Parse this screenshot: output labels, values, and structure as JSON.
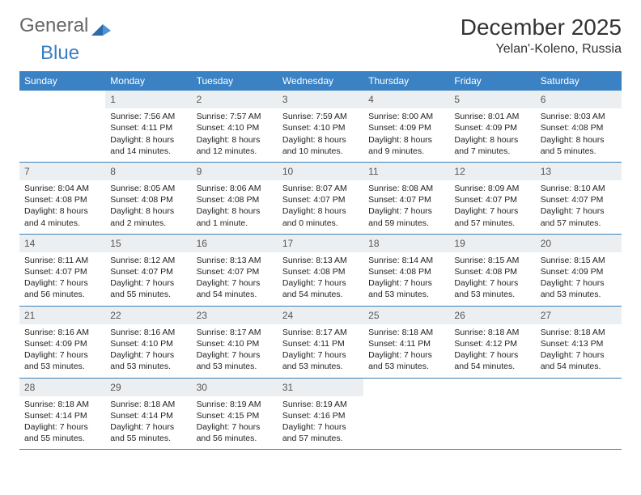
{
  "brand": {
    "part1": "General",
    "part2": "Blue"
  },
  "title": "December 2025",
  "location": "Yelan'-Koleno, Russia",
  "colors": {
    "header_bg": "#3a82c4",
    "header_text": "#ffffff",
    "daynum_bg": "#eceff1",
    "rule": "#3a7fb8",
    "text": "#333333",
    "logo_blue": "#3a7fc4"
  },
  "dow": [
    "Sunday",
    "Monday",
    "Tuesday",
    "Wednesday",
    "Thursday",
    "Friday",
    "Saturday"
  ],
  "weeks": [
    [
      {
        "n": "",
        "lines": []
      },
      {
        "n": "1",
        "lines": [
          "Sunrise: 7:56 AM",
          "Sunset: 4:11 PM",
          "Daylight: 8 hours",
          "and 14 minutes."
        ]
      },
      {
        "n": "2",
        "lines": [
          "Sunrise: 7:57 AM",
          "Sunset: 4:10 PM",
          "Daylight: 8 hours",
          "and 12 minutes."
        ]
      },
      {
        "n": "3",
        "lines": [
          "Sunrise: 7:59 AM",
          "Sunset: 4:10 PM",
          "Daylight: 8 hours",
          "and 10 minutes."
        ]
      },
      {
        "n": "4",
        "lines": [
          "Sunrise: 8:00 AM",
          "Sunset: 4:09 PM",
          "Daylight: 8 hours",
          "and 9 minutes."
        ]
      },
      {
        "n": "5",
        "lines": [
          "Sunrise: 8:01 AM",
          "Sunset: 4:09 PM",
          "Daylight: 8 hours",
          "and 7 minutes."
        ]
      },
      {
        "n": "6",
        "lines": [
          "Sunrise: 8:03 AM",
          "Sunset: 4:08 PM",
          "Daylight: 8 hours",
          "and 5 minutes."
        ]
      }
    ],
    [
      {
        "n": "7",
        "lines": [
          "Sunrise: 8:04 AM",
          "Sunset: 4:08 PM",
          "Daylight: 8 hours",
          "and 4 minutes."
        ]
      },
      {
        "n": "8",
        "lines": [
          "Sunrise: 8:05 AM",
          "Sunset: 4:08 PM",
          "Daylight: 8 hours",
          "and 2 minutes."
        ]
      },
      {
        "n": "9",
        "lines": [
          "Sunrise: 8:06 AM",
          "Sunset: 4:08 PM",
          "Daylight: 8 hours",
          "and 1 minute."
        ]
      },
      {
        "n": "10",
        "lines": [
          "Sunrise: 8:07 AM",
          "Sunset: 4:07 PM",
          "Daylight: 8 hours",
          "and 0 minutes."
        ]
      },
      {
        "n": "11",
        "lines": [
          "Sunrise: 8:08 AM",
          "Sunset: 4:07 PM",
          "Daylight: 7 hours",
          "and 59 minutes."
        ]
      },
      {
        "n": "12",
        "lines": [
          "Sunrise: 8:09 AM",
          "Sunset: 4:07 PM",
          "Daylight: 7 hours",
          "and 57 minutes."
        ]
      },
      {
        "n": "13",
        "lines": [
          "Sunrise: 8:10 AM",
          "Sunset: 4:07 PM",
          "Daylight: 7 hours",
          "and 57 minutes."
        ]
      }
    ],
    [
      {
        "n": "14",
        "lines": [
          "Sunrise: 8:11 AM",
          "Sunset: 4:07 PM",
          "Daylight: 7 hours",
          "and 56 minutes."
        ]
      },
      {
        "n": "15",
        "lines": [
          "Sunrise: 8:12 AM",
          "Sunset: 4:07 PM",
          "Daylight: 7 hours",
          "and 55 minutes."
        ]
      },
      {
        "n": "16",
        "lines": [
          "Sunrise: 8:13 AM",
          "Sunset: 4:07 PM",
          "Daylight: 7 hours",
          "and 54 minutes."
        ]
      },
      {
        "n": "17",
        "lines": [
          "Sunrise: 8:13 AM",
          "Sunset: 4:08 PM",
          "Daylight: 7 hours",
          "and 54 minutes."
        ]
      },
      {
        "n": "18",
        "lines": [
          "Sunrise: 8:14 AM",
          "Sunset: 4:08 PM",
          "Daylight: 7 hours",
          "and 53 minutes."
        ]
      },
      {
        "n": "19",
        "lines": [
          "Sunrise: 8:15 AM",
          "Sunset: 4:08 PM",
          "Daylight: 7 hours",
          "and 53 minutes."
        ]
      },
      {
        "n": "20",
        "lines": [
          "Sunrise: 8:15 AM",
          "Sunset: 4:09 PM",
          "Daylight: 7 hours",
          "and 53 minutes."
        ]
      }
    ],
    [
      {
        "n": "21",
        "lines": [
          "Sunrise: 8:16 AM",
          "Sunset: 4:09 PM",
          "Daylight: 7 hours",
          "and 53 minutes."
        ]
      },
      {
        "n": "22",
        "lines": [
          "Sunrise: 8:16 AM",
          "Sunset: 4:10 PM",
          "Daylight: 7 hours",
          "and 53 minutes."
        ]
      },
      {
        "n": "23",
        "lines": [
          "Sunrise: 8:17 AM",
          "Sunset: 4:10 PM",
          "Daylight: 7 hours",
          "and 53 minutes."
        ]
      },
      {
        "n": "24",
        "lines": [
          "Sunrise: 8:17 AM",
          "Sunset: 4:11 PM",
          "Daylight: 7 hours",
          "and 53 minutes."
        ]
      },
      {
        "n": "25",
        "lines": [
          "Sunrise: 8:18 AM",
          "Sunset: 4:11 PM",
          "Daylight: 7 hours",
          "and 53 minutes."
        ]
      },
      {
        "n": "26",
        "lines": [
          "Sunrise: 8:18 AM",
          "Sunset: 4:12 PM",
          "Daylight: 7 hours",
          "and 54 minutes."
        ]
      },
      {
        "n": "27",
        "lines": [
          "Sunrise: 8:18 AM",
          "Sunset: 4:13 PM",
          "Daylight: 7 hours",
          "and 54 minutes."
        ]
      }
    ],
    [
      {
        "n": "28",
        "lines": [
          "Sunrise: 8:18 AM",
          "Sunset: 4:14 PM",
          "Daylight: 7 hours",
          "and 55 minutes."
        ]
      },
      {
        "n": "29",
        "lines": [
          "Sunrise: 8:18 AM",
          "Sunset: 4:14 PM",
          "Daylight: 7 hours",
          "and 55 minutes."
        ]
      },
      {
        "n": "30",
        "lines": [
          "Sunrise: 8:19 AM",
          "Sunset: 4:15 PM",
          "Daylight: 7 hours",
          "and 56 minutes."
        ]
      },
      {
        "n": "31",
        "lines": [
          "Sunrise: 8:19 AM",
          "Sunset: 4:16 PM",
          "Daylight: 7 hours",
          "and 57 minutes."
        ]
      },
      {
        "n": "",
        "lines": []
      },
      {
        "n": "",
        "lines": []
      },
      {
        "n": "",
        "lines": []
      }
    ]
  ]
}
